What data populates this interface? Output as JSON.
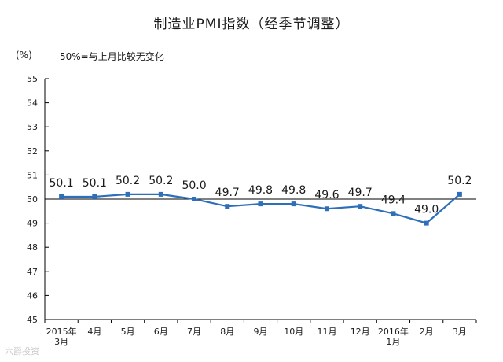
{
  "title": "制造业PMI指数（经季节调整）",
  "unit_label": "(%)",
  "note": "50%=与上月比较无变化",
  "watermark": "六爵投资",
  "colors": {
    "line": "#2e6fba",
    "axis": "#000000"
  },
  "chart_data": {
    "type": "line",
    "title": "制造业PMI指数（经季节调整）",
    "xlabel": "",
    "ylabel": "(%)",
    "ylim": [
      45,
      55
    ],
    "yticks": [
      45,
      46,
      47,
      48,
      49,
      50,
      51,
      52,
      53,
      54,
      55
    ],
    "reference_line": 50,
    "grid": false,
    "categories": [
      [
        "2015年",
        "3月"
      ],
      [
        "4月"
      ],
      [
        "5月"
      ],
      [
        "6月"
      ],
      [
        "7月"
      ],
      [
        "8月"
      ],
      [
        "9月"
      ],
      [
        "10月"
      ],
      [
        "11月"
      ],
      [
        "12月"
      ],
      [
        "2016年",
        "1月"
      ],
      [
        "2月"
      ],
      [
        "3月"
      ]
    ],
    "values": [
      50.1,
      50.1,
      50.2,
      50.2,
      50.0,
      49.7,
      49.8,
      49.8,
      49.6,
      49.7,
      49.4,
      49.0,
      50.2
    ]
  }
}
